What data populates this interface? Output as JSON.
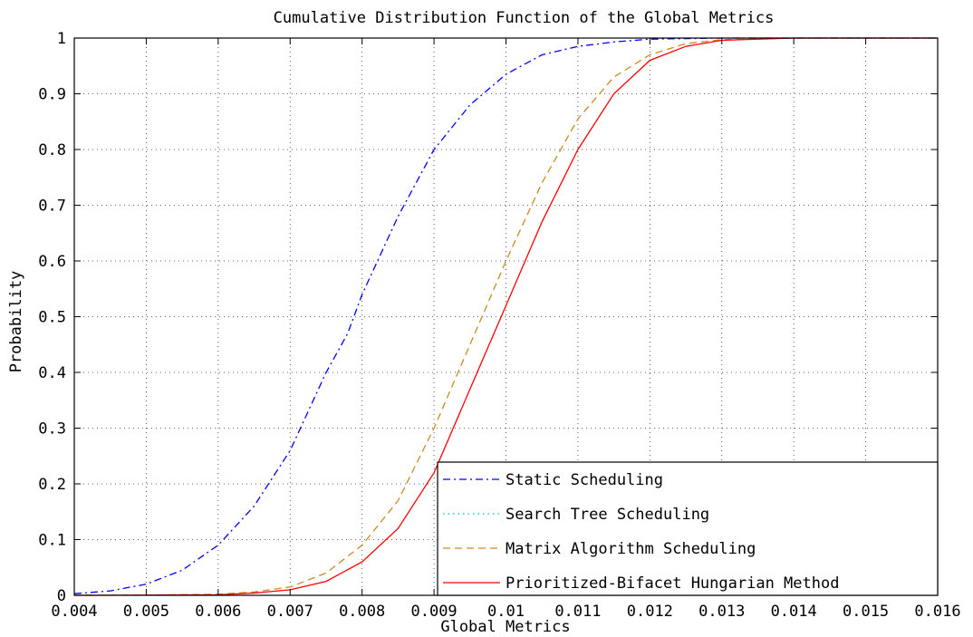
{
  "chart_data": {
    "type": "line",
    "title": "Cumulative Distribution Function of the Global Metrics",
    "xlabel": "Global Metrics",
    "ylabel": "Probability",
    "xlim": [
      0.004,
      0.016
    ],
    "ylim": [
      0,
      1
    ],
    "grid": true,
    "legend_position": "bottom-right",
    "xticks": [
      "0.004",
      "0.005",
      "0.006",
      "0.007",
      "0.008",
      "0.009",
      "0.01",
      "0.011",
      "0.012",
      "0.013",
      "0.014",
      "0.015",
      "0.016"
    ],
    "yticks": [
      "0",
      "0.1",
      "0.2",
      "0.3",
      "0.4",
      "0.5",
      "0.6",
      "0.7",
      "0.8",
      "0.9",
      "1"
    ],
    "series": [
      {
        "name": "Static Scheduling",
        "color": "#0000ff",
        "style": "dashdot",
        "x": [
          0.004,
          0.0045,
          0.005,
          0.0055,
          0.006,
          0.0065,
          0.007,
          0.0075,
          0.0078,
          0.008,
          0.0085,
          0.009,
          0.0095,
          0.01,
          0.0105,
          0.011,
          0.0115,
          0.012,
          0.0125,
          0.013,
          0.016
        ],
        "y": [
          0.003,
          0.008,
          0.02,
          0.045,
          0.09,
          0.16,
          0.26,
          0.4,
          0.47,
          0.54,
          0.68,
          0.8,
          0.88,
          0.935,
          0.97,
          0.985,
          0.993,
          0.998,
          0.999,
          1.0,
          1.0
        ]
      },
      {
        "name": "Search Tree Scheduling",
        "color": "#00bfbf",
        "style": "dotted",
        "x": [],
        "y": []
      },
      {
        "name": "Matrix Algorithm Scheduling",
        "color": "#cc8a1e",
        "style": "dashed",
        "x": [
          0.004,
          0.005,
          0.006,
          0.0065,
          0.007,
          0.0075,
          0.008,
          0.0085,
          0.009,
          0.0095,
          0.01,
          0.0105,
          0.011,
          0.0115,
          0.012,
          0.0125,
          0.013,
          0.014,
          0.016
        ],
        "y": [
          0.0,
          0.0005,
          0.002,
          0.006,
          0.015,
          0.04,
          0.09,
          0.17,
          0.3,
          0.45,
          0.6,
          0.74,
          0.855,
          0.93,
          0.97,
          0.99,
          0.997,
          1.0,
          1.0
        ]
      },
      {
        "name": "Prioritized-Bifacet Hungarian Method",
        "color": "#ff0000",
        "style": "solid",
        "x": [
          0.004,
          0.005,
          0.006,
          0.0065,
          0.007,
          0.0075,
          0.008,
          0.0085,
          0.009,
          0.0095,
          0.01,
          0.0105,
          0.011,
          0.0115,
          0.012,
          0.0125,
          0.013,
          0.014,
          0.016
        ],
        "y": [
          0.0,
          0.0003,
          0.001,
          0.004,
          0.01,
          0.025,
          0.06,
          0.12,
          0.22,
          0.37,
          0.52,
          0.67,
          0.8,
          0.9,
          0.96,
          0.985,
          0.996,
          1.0,
          1.0
        ]
      }
    ]
  }
}
